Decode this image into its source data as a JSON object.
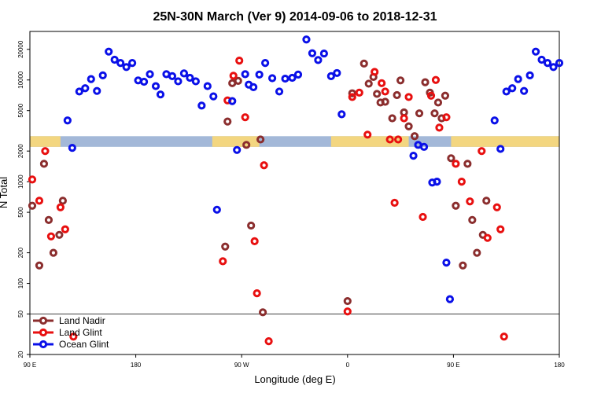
{
  "chart_data": {
    "type": "scatter",
    "title": "25N-30N March (Ver 9)   2014-09-06 to 2018-12-31",
    "xlabel": "Longitude (deg E)",
    "ylabel": "N Total",
    "y_scale": "log",
    "ylim": [
      20,
      30000
    ],
    "x_ticks": [
      {
        "value": 90,
        "label": "90 E"
      },
      {
        "value": 180,
        "label": "180"
      },
      {
        "value": 270,
        "label": "90 W"
      },
      {
        "value": 360,
        "label": "0"
      },
      {
        "value": 450,
        "label": "90 E"
      },
      {
        "value": 540,
        "label": "180"
      }
    ],
    "xlim": [
      90,
      540
    ],
    "y_ticks": [
      {
        "value": 20,
        "label": "20"
      },
      {
        "value": 50,
        "label": "50"
      },
      {
        "value": 100,
        "label": "100"
      },
      {
        "value": 200,
        "label": "200"
      },
      {
        "value": 500,
        "label": "500"
      },
      {
        "value": 1000,
        "label": "1000"
      },
      {
        "value": 2000,
        "label": "2000"
      },
      {
        "value": 5000,
        "label": "5000"
      },
      {
        "value": 10000,
        "label": "10000"
      },
      {
        "value": 20000,
        "label": "20000"
      }
    ],
    "reference_line_y": 50,
    "land_band": {
      "y_range": [
        2200,
        2800
      ],
      "ocean_color": "#a3b8d8",
      "land_color": "#f3d680",
      "land_segments": [
        [
          90,
          116
        ],
        [
          245,
          285
        ],
        [
          346,
          412
        ],
        [
          448,
          548
        ]
      ]
    },
    "legend_position": "bottom-left",
    "series": [
      {
        "name": "Land Nadir",
        "color": "#8b2e2e",
        "points": [
          [
            92,
            580
          ],
          [
            98,
            150
          ],
          [
            102,
            1500
          ],
          [
            106,
            420
          ],
          [
            110,
            200
          ],
          [
            115,
            300
          ],
          [
            118,
            650
          ],
          [
            256,
            230
          ],
          [
            258,
            3900
          ],
          [
            262,
            9300
          ],
          [
            267,
            9800
          ],
          [
            274,
            2300
          ],
          [
            278,
            370
          ],
          [
            286,
            2600
          ],
          [
            288,
            52
          ],
          [
            360,
            67
          ],
          [
            364,
            7400
          ],
          [
            374,
            14500
          ],
          [
            378,
            9200
          ],
          [
            382,
            10700
          ],
          [
            385,
            7300
          ],
          [
            388,
            6000
          ],
          [
            392,
            6100
          ],
          [
            398,
            4200
          ],
          [
            402,
            7100
          ],
          [
            405,
            9900
          ],
          [
            408,
            4800
          ],
          [
            412,
            3500
          ],
          [
            417,
            2800
          ],
          [
            421,
            4700
          ],
          [
            426,
            9500
          ],
          [
            430,
            7500
          ],
          [
            434,
            4700
          ],
          [
            437,
            6000
          ],
          [
            440,
            4200
          ],
          [
            443,
            7000
          ],
          [
            448,
            1700
          ],
          [
            452,
            580
          ],
          [
            458,
            150
          ],
          [
            462,
            1500
          ],
          [
            466,
            420
          ],
          [
            470,
            200
          ],
          [
            475,
            300
          ],
          [
            478,
            650
          ]
        ]
      },
      {
        "name": "Land Glint",
        "color": "#e81010",
        "points": [
          [
            92,
            1050
          ],
          [
            98,
            650
          ],
          [
            103,
            2000
          ],
          [
            108,
            290
          ],
          [
            116,
            560
          ],
          [
            120,
            340
          ],
          [
            127,
            30
          ],
          [
            254,
            165
          ],
          [
            258,
            6300
          ],
          [
            263,
            11000
          ],
          [
            268,
            15500
          ],
          [
            273,
            4300
          ],
          [
            281,
            260
          ],
          [
            283,
            80
          ],
          [
            289,
            1450
          ],
          [
            293,
            27
          ],
          [
            360,
            53
          ],
          [
            364,
            6800
          ],
          [
            370,
            7500
          ],
          [
            377,
            2900
          ],
          [
            383,
            12000
          ],
          [
            389,
            9300
          ],
          [
            392,
            7700
          ],
          [
            396,
            2600
          ],
          [
            400,
            620
          ],
          [
            403,
            2600
          ],
          [
            408,
            4200
          ],
          [
            412,
            6800
          ],
          [
            424,
            450
          ],
          [
            431,
            7000
          ],
          [
            435,
            10000
          ],
          [
            438,
            3400
          ],
          [
            444,
            4300
          ],
          [
            452,
            1500
          ],
          [
            457,
            1000
          ],
          [
            464,
            640
          ],
          [
            474,
            2000
          ],
          [
            479,
            280
          ],
          [
            487,
            560
          ],
          [
            490,
            340
          ],
          [
            493,
            30
          ]
        ]
      },
      {
        "name": "Ocean Glint",
        "color": "#0a10e8",
        "points": [
          [
            122,
            4000
          ],
          [
            126,
            2150
          ],
          [
            132,
            7700
          ],
          [
            137,
            8300
          ],
          [
            142,
            10200
          ],
          [
            147,
            7800
          ],
          [
            152,
            11100
          ],
          [
            157,
            19000
          ],
          [
            162,
            15800
          ],
          [
            167,
            14700
          ],
          [
            172,
            13400
          ],
          [
            177,
            14700
          ],
          [
            182,
            9900
          ],
          [
            187,
            9600
          ],
          [
            192,
            11400
          ],
          [
            197,
            8700
          ],
          [
            201,
            7200
          ],
          [
            206,
            11400
          ],
          [
            211,
            10900
          ],
          [
            216,
            9700
          ],
          [
            221,
            11600
          ],
          [
            226,
            10500
          ],
          [
            231,
            9700
          ],
          [
            236,
            5600
          ],
          [
            241,
            8700
          ],
          [
            246,
            6900
          ],
          [
            249,
            530
          ],
          [
            262,
            6200
          ],
          [
            266,
            2050
          ],
          [
            273,
            11400
          ],
          [
            276,
            9000
          ],
          [
            280,
            8500
          ],
          [
            285,
            11300
          ],
          [
            290,
            14700
          ],
          [
            296,
            10400
          ],
          [
            302,
            7700
          ],
          [
            307,
            10300
          ],
          [
            313,
            10500
          ],
          [
            318,
            11300
          ],
          [
            325,
            25000
          ],
          [
            330,
            18300
          ],
          [
            335,
            15700
          ],
          [
            340,
            18200
          ],
          [
            346,
            10900
          ],
          [
            351,
            11700
          ],
          [
            355,
            4600
          ],
          [
            416,
            1800
          ],
          [
            420,
            2300
          ],
          [
            425,
            2200
          ],
          [
            432,
            980
          ],
          [
            436,
            1000
          ],
          [
            444,
            160
          ],
          [
            447,
            70
          ],
          [
            485,
            4000
          ],
          [
            490,
            2100
          ],
          [
            495,
            7700
          ],
          [
            500,
            8300
          ],
          [
            505,
            10200
          ],
          [
            510,
            7800
          ],
          [
            515,
            11100
          ],
          [
            520,
            19000
          ],
          [
            525,
            15800
          ],
          [
            530,
            14700
          ],
          [
            535,
            13400
          ],
          [
            540,
            14700
          ]
        ]
      }
    ]
  }
}
